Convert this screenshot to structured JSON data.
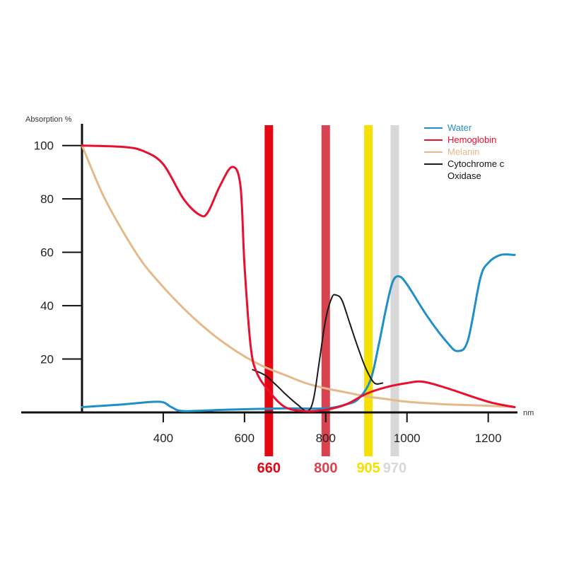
{
  "chart_data": {
    "type": "line",
    "ylabel": "Absorption %",
    "xlabel": "nm",
    "xlim": [
      200,
      1265
    ],
    "ylim": [
      0,
      110
    ],
    "x_ticks": [
      400,
      600,
      800,
      1000,
      1200
    ],
    "y_ticks": [
      20,
      40,
      60,
      80,
      100
    ],
    "grid": false,
    "legend_position": "top-right",
    "series": [
      {
        "name": "Water",
        "color": "#1f8fc8",
        "points": [
          [
            200,
            2
          ],
          [
            300,
            3
          ],
          [
            390,
            4
          ],
          [
            420,
            2
          ],
          [
            450,
            0.5
          ],
          [
            550,
            1
          ],
          [
            700,
            1.5
          ],
          [
            800,
            1.5
          ],
          [
            850,
            3
          ],
          [
            880,
            5
          ],
          [
            910,
            12
          ],
          [
            930,
            25
          ],
          [
            950,
            40
          ],
          [
            965,
            49
          ],
          [
            980,
            51
          ],
          [
            1000,
            48
          ],
          [
            1050,
            36
          ],
          [
            1100,
            26
          ],
          [
            1125,
            23
          ],
          [
            1150,
            27
          ],
          [
            1180,
            50
          ],
          [
            1200,
            56
          ],
          [
            1230,
            59
          ],
          [
            1265,
            59
          ]
        ]
      },
      {
        "name": "Hemoglobin",
        "color": "#e8102e",
        "points": [
          [
            200,
            100
          ],
          [
            300,
            99.5
          ],
          [
            350,
            98
          ],
          [
            400,
            93
          ],
          [
            450,
            80
          ],
          [
            490,
            74
          ],
          [
            510,
            75
          ],
          [
            540,
            85
          ],
          [
            570,
            92
          ],
          [
            590,
            85
          ],
          [
            600,
            55
          ],
          [
            615,
            25
          ],
          [
            630,
            15
          ],
          [
            660,
            8
          ],
          [
            700,
            2
          ],
          [
            750,
            0.5
          ],
          [
            800,
            1
          ],
          [
            850,
            3
          ],
          [
            900,
            7
          ],
          [
            950,
            9.5
          ],
          [
            1000,
            11
          ],
          [
            1040,
            11.5
          ],
          [
            1100,
            9
          ],
          [
            1200,
            4
          ],
          [
            1265,
            2
          ]
        ]
      },
      {
        "name": "Melanin",
        "color": "#e5b98a",
        "points": [
          [
            200,
            100
          ],
          [
            250,
            82
          ],
          [
            300,
            68
          ],
          [
            350,
            56
          ],
          [
            400,
            47
          ],
          [
            450,
            39
          ],
          [
            500,
            32
          ],
          [
            550,
            26
          ],
          [
            600,
            21
          ],
          [
            650,
            17
          ],
          [
            700,
            14
          ],
          [
            750,
            11
          ],
          [
            800,
            9
          ],
          [
            850,
            7.5
          ],
          [
            900,
            6
          ],
          [
            950,
            5
          ],
          [
            1000,
            4
          ],
          [
            1100,
            3
          ],
          [
            1200,
            2.5
          ],
          [
            1265,
            2
          ]
        ]
      },
      {
        "name": "Cytochrome c Oxidase",
        "color": "#1a1a1a",
        "points": [
          [
            620,
            16
          ],
          [
            650,
            14
          ],
          [
            680,
            10
          ],
          [
            700,
            7
          ],
          [
            730,
            3
          ],
          [
            755,
            0.5
          ],
          [
            770,
            5
          ],
          [
            785,
            20
          ],
          [
            800,
            35
          ],
          [
            815,
            43
          ],
          [
            825,
            44
          ],
          [
            840,
            42
          ],
          [
            860,
            33
          ],
          [
            880,
            24
          ],
          [
            900,
            16
          ],
          [
            920,
            11
          ],
          [
            940,
            11
          ]
        ]
      }
    ],
    "bands": [
      {
        "label": "660",
        "x": 660,
        "color": "#e30613"
      },
      {
        "label": "800",
        "x": 800,
        "color": "#d94350"
      },
      {
        "label": "905",
        "x": 905,
        "color": "#f5e000"
      },
      {
        "label": "970",
        "x": 970,
        "color": "#d8d8d8"
      }
    ]
  }
}
